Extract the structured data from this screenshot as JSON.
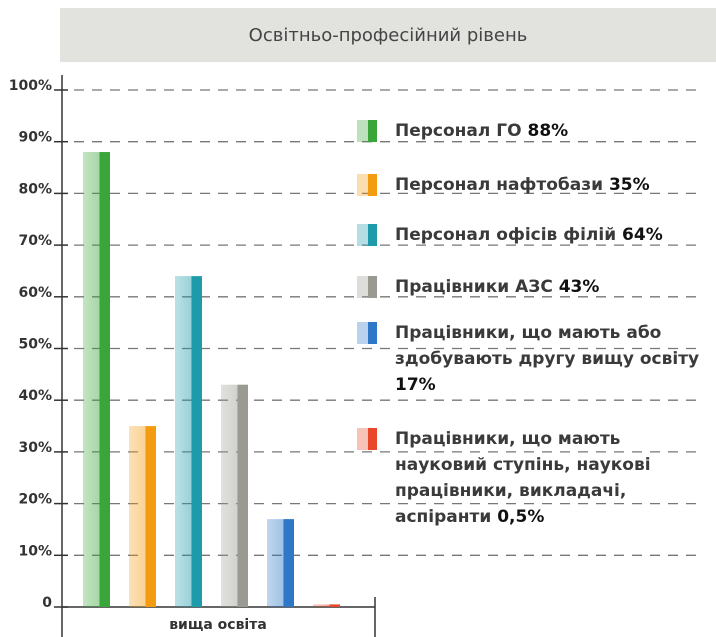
{
  "chart_data": {
    "type": "bar",
    "title": "Освітньо-професійний рівень",
    "categories": [
      "вища освіта"
    ],
    "series": [
      {
        "name": "Персонал ГО",
        "color": "#3aa63a",
        "values": [
          88
        ],
        "value_labels": [
          "88%"
        ]
      },
      {
        "name": "Персонал нафтобази",
        "color": "#f39c12",
        "values": [
          35
        ],
        "value_labels": [
          "35%"
        ]
      },
      {
        "name": "Персонал офісів філій",
        "color": "#1e9bab",
        "values": [
          64
        ],
        "value_labels": [
          "64%"
        ]
      },
      {
        "name": "Працівники АЗС",
        "color": "#9a9a92",
        "values": [
          43
        ],
        "value_labels": [
          "43%"
        ]
      },
      {
        "name": "Працівники, що мають або здобувають другу вищу освіту",
        "color": "#2f78c8",
        "values": [
          17
        ],
        "value_labels": [
          "17%"
        ]
      },
      {
        "name": "Працівники, що мають науковий ступінь, наукові працівники, викладачі, аспіранти",
        "color": "#e8472a",
        "values": [
          0.5
        ],
        "value_labels": [
          "0,5%"
        ]
      }
    ],
    "ylim": [
      0,
      100
    ],
    "yticks": [
      0,
      {
        "value": 10,
        "label": "10%"
      },
      {
        "value": 20,
        "label": "20%"
      },
      {
        "value": 30,
        "label": "30%"
      },
      {
        "value": 40,
        "label": "40%"
      },
      {
        "value": 50,
        "label": "50%"
      },
      {
        "value": 60,
        "label": "60%"
      },
      {
        "value": 70,
        "label": "70%"
      },
      {
        "value": 80,
        "label": "80%"
      },
      {
        "value": 90,
        "label": "90%"
      },
      {
        "value": 100,
        "label": "100%"
      }
    ],
    "grid": true
  }
}
